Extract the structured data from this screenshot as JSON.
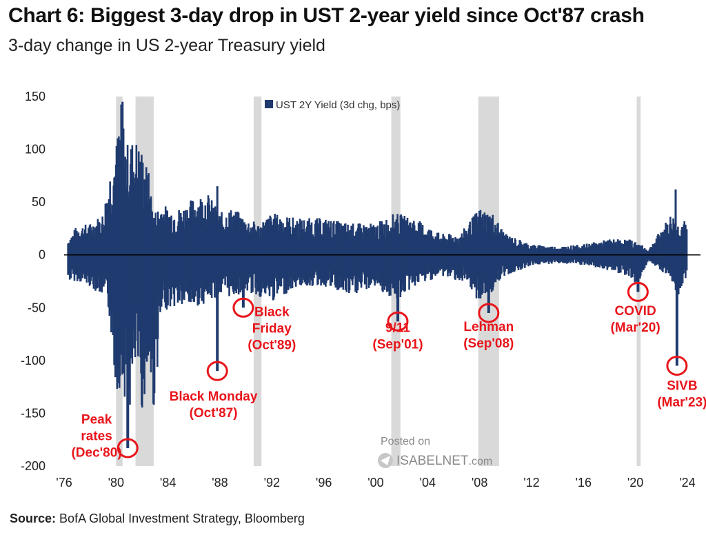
{
  "header": {
    "title": "Chart 6: Biggest 3-day drop in UST 2-year yield since Oct'87 crash",
    "subtitle": "3-day change in US 2-year Treasury yield"
  },
  "footer": {
    "source_label": "Source:",
    "source_text": "BofA Global Investment Strategy, Bloomberg"
  },
  "watermark": {
    "line1": "Posted on",
    "line2": "ISABELNET",
    "line2_suffix": ".com"
  },
  "colors": {
    "series": "#1f3a6e",
    "shading": "#d9d9d9",
    "annotation": "#e8151b",
    "zero_line": "#000000"
  },
  "chart_data": {
    "type": "bar",
    "ylim": [
      -200,
      150
    ],
    "xlim": [
      1976,
      2024.8
    ],
    "y_ticks": [
      150,
      100,
      50,
      0,
      -50,
      -100,
      -150,
      -200
    ],
    "x_ticks": [
      {
        "year": 1976,
        "label": "'76"
      },
      {
        "year": 1980,
        "label": "'80"
      },
      {
        "year": 1984,
        "label": "'84"
      },
      {
        "year": 1988,
        "label": "'88"
      },
      {
        "year": 1992,
        "label": "'92"
      },
      {
        "year": 1996,
        "label": "'96"
      },
      {
        "year": 2000,
        "label": "'00"
      },
      {
        "year": 2004,
        "label": "'04"
      },
      {
        "year": 2008,
        "label": "'08"
      },
      {
        "year": 2012,
        "label": "'12"
      },
      {
        "year": 2016,
        "label": "'16"
      },
      {
        "year": 2020,
        "label": "'20"
      },
      {
        "year": 2024,
        "label": "'24"
      }
    ],
    "legend": "UST 2Y Yield (3d chg, bps)",
    "recessions": [
      {
        "start": 1980.0,
        "end": 1980.5
      },
      {
        "start": 1981.5,
        "end": 1982.9
      },
      {
        "start": 1990.6,
        "end": 1991.2
      },
      {
        "start": 2001.2,
        "end": 2001.9
      },
      {
        "start": 2007.9,
        "end": 2009.5
      },
      {
        "start": 2020.1,
        "end": 2020.4
      }
    ],
    "envelope": [
      {
        "x": 1976.3,
        "max": 15,
        "min": -25
      },
      {
        "x": 1977.0,
        "max": 28,
        "min": -25
      },
      {
        "x": 1978.0,
        "max": 30,
        "min": -30
      },
      {
        "x": 1979.0,
        "max": 40,
        "min": -40
      },
      {
        "x": 1979.5,
        "max": 80,
        "min": -60
      },
      {
        "x": 1980.0,
        "max": 105,
        "min": -130
      },
      {
        "x": 1980.4,
        "max": 145,
        "min": -125
      },
      {
        "x": 1980.8,
        "max": 105,
        "min": -140
      },
      {
        "x": 1981.1,
        "max": 110,
        "min": -150
      },
      {
        "x": 1981.6,
        "max": 110,
        "min": -100
      },
      {
        "x": 1982.0,
        "max": 100,
        "min": -150
      },
      {
        "x": 1982.5,
        "max": 80,
        "min": -110
      },
      {
        "x": 1982.9,
        "max": 40,
        "min": -150
      },
      {
        "x": 1983.5,
        "max": 50,
        "min": -60
      },
      {
        "x": 1984.0,
        "max": 45,
        "min": -50
      },
      {
        "x": 1985.0,
        "max": 45,
        "min": -50
      },
      {
        "x": 1986.0,
        "max": 55,
        "min": -50
      },
      {
        "x": 1987.0,
        "max": 60,
        "min": -45
      },
      {
        "x": 1988.0,
        "max": 40,
        "min": -40
      },
      {
        "x": 1989.0,
        "max": 45,
        "min": -40
      },
      {
        "x": 1990.0,
        "max": 35,
        "min": -35
      },
      {
        "x": 1991.0,
        "max": 30,
        "min": -40
      },
      {
        "x": 1992.0,
        "max": 40,
        "min": -45
      },
      {
        "x": 1994.0,
        "max": 35,
        "min": -30
      },
      {
        "x": 1996.0,
        "max": 35,
        "min": -30
      },
      {
        "x": 1998.0,
        "max": 30,
        "min": -40
      },
      {
        "x": 2000.0,
        "max": 30,
        "min": -30
      },
      {
        "x": 2001.5,
        "max": 40,
        "min": -45
      },
      {
        "x": 2003.0,
        "max": 35,
        "min": -30
      },
      {
        "x": 2005.0,
        "max": 20,
        "min": -20
      },
      {
        "x": 2006.5,
        "max": 20,
        "min": -25
      },
      {
        "x": 2008.0,
        "max": 45,
        "min": -45
      },
      {
        "x": 2009.0,
        "max": 40,
        "min": -35
      },
      {
        "x": 2010.0,
        "max": 20,
        "min": -20
      },
      {
        "x": 2012.0,
        "max": 10,
        "min": -10
      },
      {
        "x": 2014.0,
        "max": 8,
        "min": -8
      },
      {
        "x": 2016.0,
        "max": 10,
        "min": -10
      },
      {
        "x": 2018.0,
        "max": 15,
        "min": -15
      },
      {
        "x": 2019.5,
        "max": 15,
        "min": -20
      },
      {
        "x": 2020.2,
        "max": 12,
        "min": -30
      },
      {
        "x": 2021.0,
        "max": 5,
        "min": -5
      },
      {
        "x": 2022.0,
        "max": 25,
        "min": -15
      },
      {
        "x": 2022.8,
        "max": 40,
        "min": -25
      },
      {
        "x": 2023.3,
        "max": 30,
        "min": -40
      },
      {
        "x": 2023.7,
        "max": 35,
        "min": -25
      },
      {
        "x": 2024.0,
        "max": 25,
        "min": -20
      }
    ],
    "spikes": [
      {
        "x": 1980.5,
        "y": 145
      },
      {
        "x": 1987.8,
        "y": 65
      },
      {
        "x": 2023.1,
        "y": 62
      }
    ],
    "events": [
      {
        "x": 1980.9,
        "y": -183,
        "label": "Peak\nrates\n(Dec'80)",
        "label_x": 1978.5,
        "label_y": -160
      },
      {
        "x": 1987.8,
        "y": -110,
        "label": "Black Monday\n(Oct'87)",
        "label_x": 1987.5,
        "label_y": -138
      },
      {
        "x": 1989.8,
        "y": -50,
        "label": "Black\nFriday\n(Oct'89)",
        "label_x": 1992.0,
        "label_y": -58
      },
      {
        "x": 2001.7,
        "y": -63,
        "label": "9/11\n(Sep'01)",
        "label_x": 2001.7,
        "label_y": -73
      },
      {
        "x": 2008.7,
        "y": -55,
        "label": "Lehman\n(Sep'08)",
        "label_x": 2008.7,
        "label_y": -72
      },
      {
        "x": 2020.2,
        "y": -35,
        "label": "COVID\n(Mar'20)",
        "label_x": 2020.0,
        "label_y": -57
      },
      {
        "x": 2023.2,
        "y": -105,
        "label": "SIVB\n(Mar'23)",
        "label_x": 2023.6,
        "label_y": -128
      }
    ]
  }
}
